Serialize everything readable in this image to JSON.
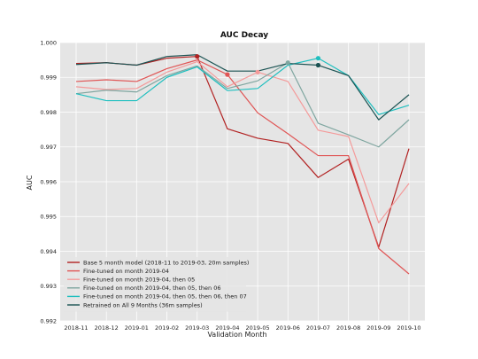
{
  "chart_data": {
    "type": "line",
    "title": "AUC Decay",
    "xlabel": "Validation Month",
    "ylabel": "AUC",
    "categories": [
      "2018-11",
      "2018-12",
      "2019-01",
      "2019-02",
      "2019-03",
      "2019-04",
      "2019-05",
      "2019-06",
      "2019-07",
      "2019-08",
      "2019-09",
      "2019-10"
    ],
    "ylim": [
      0.992,
      1.0
    ],
    "yticks": [
      "0.992",
      "0.993",
      "0.994",
      "0.995",
      "0.996",
      "0.997",
      "0.998",
      "0.999",
      "1.000"
    ],
    "grid": true,
    "legend_position": "lower-left",
    "background": "#e5e5e5",
    "series": [
      {
        "name": "Base 5 month model (2018-11 to 2019-03, 20m samples)",
        "color": "#b22222",
        "start": 0,
        "values": [
          0.9994,
          0.99942,
          0.99935,
          0.99955,
          0.9996,
          0.99752,
          0.99725,
          0.9971,
          0.99612,
          0.99665,
          0.99412,
          0.99695
        ],
        "markers": [
          4
        ]
      },
      {
        "name": "Fine-tuned on month 2019-04",
        "color": "#e05555",
        "start": 0,
        "values": [
          0.99888,
          0.99893,
          0.99888,
          0.99925,
          0.9995,
          0.99908,
          0.99798,
          0.99738,
          0.99675,
          0.99675,
          0.99408,
          0.99335
        ],
        "markers": [
          5
        ]
      },
      {
        "name": "Fine-tuned on month 2019-04, then 05",
        "color": "#f49a9a",
        "start": 0,
        "values": [
          0.99873,
          0.99865,
          0.99868,
          0.99915,
          0.99945,
          0.99873,
          0.99915,
          0.99888,
          0.99748,
          0.9973,
          0.99482,
          0.99595
        ],
        "markers": [
          6
        ]
      },
      {
        "name": "Fine-tuned on month 2019-04, then 05, then 06",
        "color": "#7fa6a0",
        "start": 0,
        "values": [
          0.99853,
          0.99863,
          0.99858,
          0.99905,
          0.99933,
          0.99868,
          0.9989,
          0.99942,
          0.99768,
          0.99735,
          0.997,
          0.99778
        ],
        "markers": [
          7
        ]
      },
      {
        "name": "Fine-tuned on month 2019-04, then 05, then 06, then 07",
        "color": "#1fbfbf",
        "start": 0,
        "values": [
          0.99853,
          0.99833,
          0.99833,
          0.999,
          0.9993,
          0.99862,
          0.99868,
          0.99935,
          0.99955,
          0.99905,
          0.99793,
          0.9982
        ],
        "markers": [
          8
        ]
      },
      {
        "name": "Retrained on All 9 Months (36m samples)",
        "color": "#1a5252",
        "start": 0,
        "values": [
          0.99937,
          0.99942,
          0.99935,
          0.9996,
          0.99965,
          0.99918,
          0.99918,
          0.9994,
          0.99935,
          0.99905,
          0.99778,
          0.9985
        ],
        "markers": [
          8
        ]
      }
    ]
  }
}
